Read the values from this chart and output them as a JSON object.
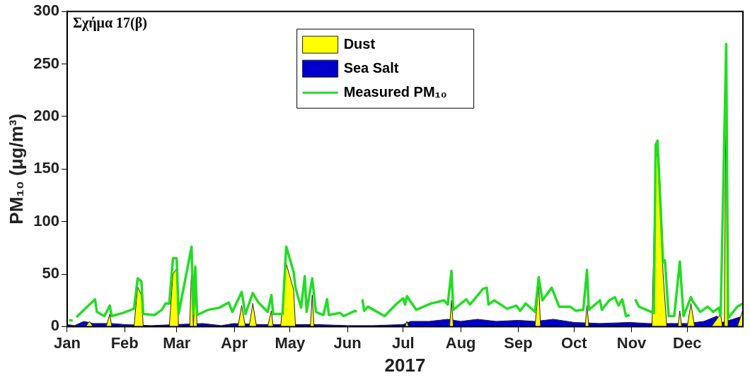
{
  "chart_data": {
    "type": "area",
    "xlabel": "2017",
    "ylabel": "PM₁₀ (μg/m³)",
    "annotations": [
      "Σχήμα 17(β)"
    ],
    "xlim": [
      "2017-01-01",
      "2017-12-31"
    ],
    "xticks": [
      {
        "value": "2017-01-01",
        "label": "Jan"
      },
      {
        "value": "2017-02-01",
        "label": "Feb"
      },
      {
        "value": "2017-03-01",
        "label": "Mar"
      },
      {
        "value": "2017-04-01",
        "label": "Apr"
      },
      {
        "value": "2017-05-01",
        "label": "May"
      },
      {
        "value": "2017-06-01",
        "label": "Jun"
      },
      {
        "value": "2017-07-01",
        "label": "Jul"
      },
      {
        "value": "2017-08-01",
        "label": "Aug"
      },
      {
        "value": "2017-09-01",
        "label": "Sep"
      },
      {
        "value": "2017-10-01",
        "label": "Oct"
      },
      {
        "value": "2017-11-01",
        "label": "Nov"
      },
      {
        "value": "2017-12-01",
        "label": "Dec"
      }
    ],
    "ylim": [
      0,
      300
    ],
    "yticks": [
      0,
      50,
      100,
      150,
      200,
      250,
      300
    ],
    "grid": false,
    "legend": "top",
    "series": [
      {
        "name": "Dust",
        "color": "#ffff00",
        "x": [
          "2017-01-01",
          "2017-01-11",
          "2017-01-13",
          "2017-01-15",
          "2017-01-22",
          "2017-01-24",
          "2017-01-25",
          "2017-02-06",
          "2017-02-08",
          "2017-02-10",
          "2017-02-11",
          "2017-02-25",
          "2017-02-27",
          "2017-03-01",
          "2017-03-02",
          "2017-03-08",
          "2017-03-09",
          "2017-03-10",
          "2017-03-11",
          "2017-03-12",
          "2017-04-03",
          "2017-04-05",
          "2017-04-07",
          "2017-04-09",
          "2017-04-11",
          "2017-04-13",
          "2017-04-19",
          "2017-04-21",
          "2017-04-22",
          "2017-04-26",
          "2017-04-29",
          "2017-05-03",
          "2017-05-04",
          "2017-05-12",
          "2017-05-13",
          "2017-05-14",
          "2017-07-02",
          "2017-07-03",
          "2017-07-04",
          "2017-07-26",
          "2017-07-27",
          "2017-07-28",
          "2017-09-10",
          "2017-09-12",
          "2017-09-13",
          "2017-10-07",
          "2017-10-08",
          "2017-10-09",
          "2017-11-12",
          "2017-11-14",
          "2017-11-15",
          "2017-11-18",
          "2017-11-20",
          "2017-11-26",
          "2017-11-27",
          "2017-11-28",
          "2017-12-01",
          "2017-12-03",
          "2017-12-05",
          "2017-12-14",
          "2017-12-19",
          "2017-12-20",
          "2017-12-21",
          "2017-12-22",
          "2017-12-23",
          "2017-12-28",
          "2017-12-31"
        ],
        "values": [
          0,
          0,
          5,
          0,
          0,
          12,
          0,
          0,
          38,
          30,
          0,
          0,
          50,
          55,
          0,
          0,
          55,
          0,
          40,
          0,
          0,
          20,
          0,
          0,
          22,
          0,
          0,
          15,
          0,
          0,
          60,
          35,
          0,
          0,
          30,
          0,
          0,
          5,
          0,
          0,
          25,
          0,
          0,
          40,
          0,
          0,
          20,
          0,
          0,
          160,
          165,
          50,
          0,
          0,
          15,
          0,
          0,
          22,
          0,
          0,
          12,
          0,
          0,
          260,
          0,
          0,
          16
        ]
      },
      {
        "name": "Sea Salt",
        "color": "#0000cc",
        "x": [
          "2017-01-01",
          "2017-01-05",
          "2017-01-10",
          "2017-01-15",
          "2017-01-25",
          "2017-02-01",
          "2017-02-15",
          "2017-03-01",
          "2017-03-15",
          "2017-03-25",
          "2017-04-01",
          "2017-04-15",
          "2017-05-01",
          "2017-05-15",
          "2017-06-01",
          "2017-06-15",
          "2017-07-01",
          "2017-07-05",
          "2017-07-15",
          "2017-07-25",
          "2017-08-01",
          "2017-08-10",
          "2017-08-20",
          "2017-09-01",
          "2017-09-10",
          "2017-09-20",
          "2017-10-01",
          "2017-10-15",
          "2017-10-31",
          "2017-11-10",
          "2017-11-20",
          "2017-12-01",
          "2017-12-10",
          "2017-12-17",
          "2017-12-20",
          "2017-12-31"
        ],
        "values": [
          2,
          1,
          5,
          3,
          3,
          2,
          1,
          2,
          3,
          1,
          3,
          2,
          2,
          2,
          1,
          1,
          2,
          5,
          5,
          7,
          5,
          7,
          5,
          6,
          5,
          7,
          4,
          3,
          4,
          3,
          3,
          3,
          5,
          10,
          4,
          10
        ]
      },
      {
        "name": "Measured PM₁₀",
        "type": "line",
        "color": "#22dd22",
        "x": [
          "2017-01-02",
          "2017-01-04",
          "2017-01-05",
          "2017-01-06",
          "2017-01-13",
          "2017-01-16",
          "2017-01-17",
          "2017-01-21",
          "2017-01-24",
          "2017-01-25",
          "2017-01-31",
          "2017-02-06",
          "2017-02-08",
          "2017-02-10",
          "2017-02-11",
          "2017-02-17",
          "2017-02-21",
          "2017-02-23",
          "2017-02-25",
          "2017-02-27",
          "2017-03-01",
          "2017-03-02",
          "2017-03-09",
          "2017-03-10",
          "2017-03-11",
          "2017-03-12",
          "2017-03-18",
          "2017-03-24",
          "2017-03-29",
          "2017-03-31",
          "2017-04-05",
          "2017-04-07",
          "2017-04-11",
          "2017-04-14",
          "2017-04-19",
          "2017-04-21",
          "2017-04-22",
          "2017-04-27",
          "2017-04-29",
          "2017-05-03",
          "2017-05-04",
          "2017-05-07",
          "2017-05-09",
          "2017-05-10",
          "2017-05-13",
          "2017-05-15",
          "2017-05-19",
          "2017-05-21",
          "2017-05-22",
          "2017-05-28",
          "2017-05-30",
          "2017-06-05",
          "2017-06-06",
          "2017-06-07",
          "2017-06-09",
          "2017-06-10",
          "2017-06-12",
          "2017-06-15",
          "2017-06-21",
          "2017-06-27",
          "2017-07-01",
          "2017-07-02",
          "2017-07-03",
          "2017-07-08",
          "2017-07-16",
          "2017-07-23",
          "2017-07-25",
          "2017-07-27",
          "2017-07-28",
          "2017-08-04",
          "2017-08-06",
          "2017-08-13",
          "2017-08-15",
          "2017-08-16",
          "2017-08-19",
          "2017-08-26",
          "2017-08-31",
          "2017-09-02",
          "2017-09-05",
          "2017-09-10",
          "2017-09-12",
          "2017-09-14",
          "2017-09-19",
          "2017-09-23",
          "2017-09-29",
          "2017-10-02",
          "2017-10-06",
          "2017-10-08",
          "2017-10-09",
          "2017-10-15",
          "2017-10-16",
          "2017-10-20",
          "2017-10-23",
          "2017-10-25",
          "2017-10-27",
          "2017-10-29",
          "2017-10-31",
          "2017-11-01",
          "2017-11-03",
          "2017-11-05",
          "2017-11-09",
          "2017-11-13",
          "2017-11-14",
          "2017-11-15",
          "2017-11-18",
          "2017-11-19",
          "2017-11-21",
          "2017-11-24",
          "2017-11-27",
          "2017-11-29",
          "2017-12-03",
          "2017-12-04",
          "2017-12-08",
          "2017-12-12",
          "2017-12-15",
          "2017-12-18",
          "2017-12-19",
          "2017-12-22",
          "2017-12-23",
          "2017-12-28",
          "2017-12-31"
        ],
        "values": [
          6,
          6,
          null,
          9,
          21,
          26,
          14,
          10,
          20,
          10,
          13,
          17,
          46,
          43,
          12,
          11,
          16,
          22,
          22,
          65,
          65,
          12,
          76,
          12,
          57,
          11,
          16,
          18,
          23,
          14,
          33,
          12,
          32,
          23,
          14,
          30,
          12,
          12,
          76,
          52,
          37,
          18,
          48,
          14,
          46,
          14,
          11,
          26,
          11,
          13,
          10,
          15,
          14,
          null,
          26,
          15,
          19,
          16,
          10,
          21,
          27,
          21,
          29,
          16,
          22,
          25,
          21,
          53,
          16,
          26,
          21,
          36,
          37,
          21,
          25,
          17,
          20,
          15,
          22,
          14,
          47,
          25,
          37,
          19,
          19,
          15,
          16,
          54,
          16,
          25,
          16,
          25,
          28,
          20,
          26,
          10,
          11,
          null,
          26,
          19,
          16,
          13,
          173,
          177,
          61,
          63,
          10,
          10,
          62,
          10,
          28,
          24,
          14,
          19,
          14,
          18,
          10,
          269,
          8,
          19,
          22
        ]
      }
    ]
  }
}
